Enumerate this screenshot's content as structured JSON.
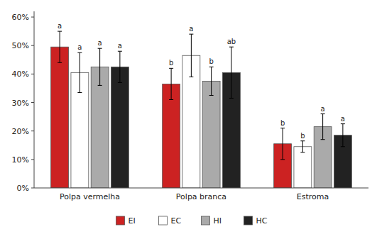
{
  "chart_data": {
    "type": "bar",
    "categories": [
      "Polpa vermelha",
      "Polpa branca",
      "Estroma"
    ],
    "series": [
      {
        "name": "EI",
        "color": "#cc2222",
        "values": [
          49.5,
          36.5,
          15.5
        ],
        "errors": [
          5.5,
          5.5,
          5.5
        ],
        "annotations": [
          "a",
          "b",
          "b"
        ]
      },
      {
        "name": "EC",
        "color": "#ffffff",
        "values": [
          40.5,
          46.5,
          14.5
        ],
        "errors": [
          7.0,
          7.5,
          2.0
        ],
        "annotations": [
          "a",
          "a",
          "b"
        ]
      },
      {
        "name": "HI",
        "color": "#aaaaaa",
        "values": [
          42.5,
          37.5,
          21.5
        ],
        "errors": [
          6.5,
          5.0,
          4.5
        ],
        "annotations": [
          "a",
          "b",
          "a"
        ]
      },
      {
        "name": "HC",
        "color": "#222222",
        "values": [
          42.5,
          40.5,
          18.5
        ],
        "errors": [
          5.5,
          9.0,
          4.0
        ],
        "annotations": [
          "a",
          "ab",
          "a"
        ]
      }
    ],
    "ylim": [
      0,
      62
    ],
    "yticks": [
      {
        "value": 0,
        "label": "0%"
      },
      {
        "value": 10,
        "label": "10%"
      },
      {
        "value": 20,
        "label": "20%"
      },
      {
        "value": 30,
        "label": "30%"
      },
      {
        "value": 40,
        "label": "40%"
      },
      {
        "value": 50,
        "label": "50%"
      },
      {
        "value": 60,
        "label": "60%"
      }
    ],
    "grid": false,
    "legend": "bottom"
  }
}
